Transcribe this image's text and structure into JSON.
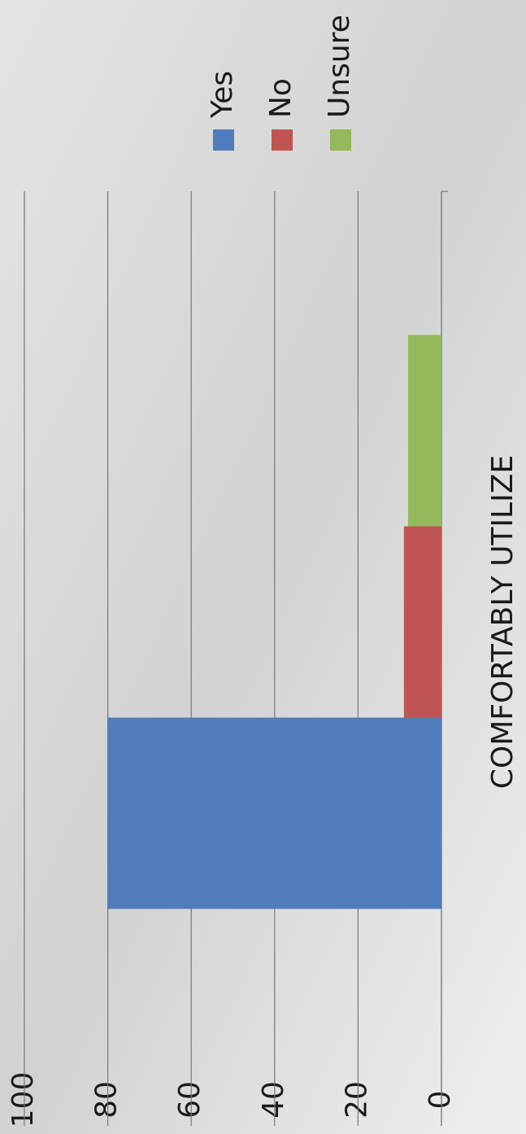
{
  "chart_data": {
    "type": "bar",
    "categories": [
      "COMFORTABLY UTILIZE"
    ],
    "series": [
      {
        "name": "Yes",
        "color": "#4f7dbb",
        "values": [
          80
        ]
      },
      {
        "name": "No",
        "color": "#bf5552",
        "values": [
          9
        ]
      },
      {
        "name": "Unsure",
        "color": "#94b85a",
        "values": [
          8
        ]
      }
    ],
    "ylim": [
      0,
      100
    ],
    "yticks": [
      0,
      20,
      40,
      60,
      80,
      100
    ],
    "grid": true,
    "legend": "right"
  }
}
